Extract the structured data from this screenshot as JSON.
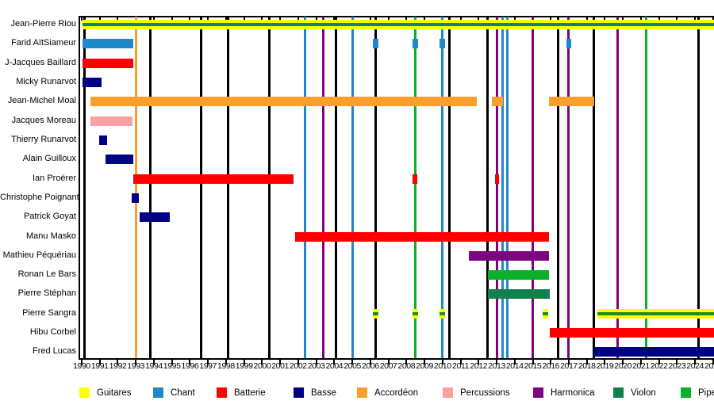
{
  "chart_data": {
    "type": "timeline",
    "title": "",
    "axis": {
      "min_year": 1990,
      "max_year": 2025,
      "tick_labels": [
        "1990",
        "1991",
        "1992",
        "1993",
        "1994",
        "1995",
        "1996",
        "1997",
        "1998",
        "1999",
        "2000",
        "2001",
        "2002",
        "2003",
        "2004",
        "2005",
        "2006",
        "2007",
        "2008",
        "2009",
        "2010",
        "2011",
        "2012",
        "2013",
        "2014",
        "2015",
        "2016",
        "2017",
        "2018",
        "2019",
        "2020",
        "2021",
        "2022",
        "2023",
        "2024",
        "2025"
      ]
    },
    "colors": {
      "guitares": "#FFFF00",
      "chant": "#1E88CC",
      "batterie": "#FF0000",
      "basse": "#000087",
      "accordeon": "#FA9E2D",
      "percussions": "#F9A0A5",
      "harmonica": "#7D0581",
      "violon": "#12804D",
      "pipes": "#0AB02A",
      "chant_guitares_stripe": "#0F8080",
      "pipes_guitares_stripe": "#1E8C1E",
      "black": "#000000"
    },
    "legend": [
      {
        "label": "Guitares",
        "color": "guitares"
      },
      {
        "label": "Chant",
        "color": "chant"
      },
      {
        "label": "Batterie",
        "color": "batterie"
      },
      {
        "label": "Basse",
        "color": "basse"
      },
      {
        "label": "Accordéon",
        "color": "accordeon"
      },
      {
        "label": "Percussions",
        "color": "percussions"
      },
      {
        "label": "Harmonica",
        "color": "harmonica"
      },
      {
        "label": "Violon",
        "color": "violon"
      },
      {
        "label": "Pipes",
        "color": "pipes"
      }
    ],
    "members": [
      {
        "name": "Jean-Pierre Riou",
        "segments": [
          {
            "start": 1990.05,
            "end": 2025.2,
            "color": "guitares",
            "stripe": "chant_guitares_stripe"
          }
        ]
      },
      {
        "name": "Farid AïtSiameur",
        "segments": [
          {
            "start": 1990.05,
            "end": 1992.85,
            "color": "chant"
          },
          {
            "start": 2006.15,
            "end": 2006.45,
            "color": "chant"
          },
          {
            "start": 2008.35,
            "end": 2008.65,
            "color": "chant"
          },
          {
            "start": 2009.85,
            "end": 2010.15,
            "color": "chant"
          },
          {
            "start": 2016.85,
            "end": 2017.15,
            "color": "chant"
          }
        ]
      },
      {
        "name": "J-Jacques Baillard",
        "segments": [
          {
            "start": 1990.05,
            "end": 1992.85,
            "color": "batterie"
          }
        ]
      },
      {
        "name": "Micky Runarvot",
        "segments": [
          {
            "start": 1990.05,
            "end": 1991.1,
            "color": "basse"
          }
        ]
      },
      {
        "name": "Jean-Michel Moal",
        "segments": [
          {
            "start": 1990.5,
            "end": 2011.9,
            "color": "accordeon"
          },
          {
            "start": 2012.75,
            "end": 2013.35,
            "color": "accordeon"
          },
          {
            "start": 2015.9,
            "end": 2018.4,
            "color": "accordeon"
          }
        ]
      },
      {
        "name": "Jacques Moreau",
        "segments": [
          {
            "start": 1990.5,
            "end": 1992.8,
            "color": "percussions"
          }
        ]
      },
      {
        "name": "Thierry Runarvot",
        "segments": [
          {
            "start": 1990.95,
            "end": 1991.4,
            "color": "basse"
          }
        ]
      },
      {
        "name": "Alain Guilloux",
        "segments": [
          {
            "start": 1991.3,
            "end": 1992.85,
            "color": "basse"
          }
        ]
      },
      {
        "name": "Ian Proërer",
        "segments": [
          {
            "start": 1992.85,
            "end": 2001.75,
            "color": "batterie"
          },
          {
            "start": 2008.35,
            "end": 2008.6,
            "color": "batterie"
          },
          {
            "start": 2012.9,
            "end": 2013.15,
            "color": "batterie"
          }
        ]
      },
      {
        "name": "Christophe Poignant",
        "segments": [
          {
            "start": 1992.75,
            "end": 1993.15,
            "color": "basse"
          }
        ]
      },
      {
        "name": "Patrick Goyat",
        "segments": [
          {
            "start": 1993.2,
            "end": 1994.9,
            "color": "basse"
          }
        ]
      },
      {
        "name": "Manu Masko",
        "segments": [
          {
            "start": 2001.85,
            "end": 2015.9,
            "color": "batterie"
          }
        ]
      },
      {
        "name": "Mathieu Péquériau",
        "segments": [
          {
            "start": 2011.45,
            "end": 2015.9,
            "color": "harmonica"
          }
        ]
      },
      {
        "name": "Ronan Le Bars",
        "segments": [
          {
            "start": 2012.5,
            "end": 2015.9,
            "color": "pipes"
          }
        ]
      },
      {
        "name": "Pierre Stéphan",
        "segments": [
          {
            "start": 2012.5,
            "end": 2015.95,
            "color": "violon"
          }
        ]
      },
      {
        "name": "Pierre Sangra",
        "segments": [
          {
            "start": 2006.15,
            "end": 2006.45,
            "color": "guitares",
            "stripe": "pipes_guitares_stripe"
          },
          {
            "start": 2008.35,
            "end": 2008.65,
            "color": "guitares",
            "stripe": "pipes_guitares_stripe"
          },
          {
            "start": 2009.85,
            "end": 2010.15,
            "color": "guitares",
            "stripe": "pipes_guitares_stripe"
          },
          {
            "start": 2015.55,
            "end": 2015.85,
            "color": "guitares",
            "stripe": "pipes_guitares_stripe"
          },
          {
            "start": 2018.6,
            "end": 2025.2,
            "color": "guitares",
            "stripe": "pipes_guitares_stripe"
          }
        ]
      },
      {
        "name": "Hibu Corbel",
        "segments": [
          {
            "start": 2015.95,
            "end": 2025.2,
            "color": "batterie"
          }
        ]
      },
      {
        "name": "Fred Lucas",
        "segments": [
          {
            "start": 2018.4,
            "end": 2025.2,
            "color": "basse"
          }
        ]
      }
    ],
    "event_lines": [
      {
        "year": 1990.15,
        "color": "black"
      },
      {
        "year": 1993.0,
        "color": "accordeon"
      },
      {
        "year": 1993.8,
        "color": "black"
      },
      {
        "year": 1996.6,
        "color": "black"
      },
      {
        "year": 1998.1,
        "color": "black"
      },
      {
        "year": 2000.4,
        "color": "black"
      },
      {
        "year": 2002.4,
        "color": "chant"
      },
      {
        "year": 2003.4,
        "color": "harmonica"
      },
      {
        "year": 2004.1,
        "color": "black"
      },
      {
        "year": 2005.0,
        "color": "chant"
      },
      {
        "year": 2006.3,
        "color": "black"
      },
      {
        "year": 2008.5,
        "color": "pipes"
      },
      {
        "year": 2010.0,
        "color": "chant"
      },
      {
        "year": 2010.4,
        "color": "black"
      },
      {
        "year": 2012.5,
        "color": "black"
      },
      {
        "year": 2013.0,
        "color": "harmonica"
      },
      {
        "year": 2013.35,
        "color": "chant"
      },
      {
        "year": 2013.6,
        "color": "chant"
      },
      {
        "year": 2015.0,
        "color": "harmonica"
      },
      {
        "year": 2016.4,
        "color": "black"
      },
      {
        "year": 2017.0,
        "color": "harmonica"
      },
      {
        "year": 2018.4,
        "color": "black"
      },
      {
        "year": 2019.7,
        "color": "harmonica"
      },
      {
        "year": 2021.3,
        "color": "pipes"
      },
      {
        "year": 2024.2,
        "color": "black"
      }
    ]
  }
}
